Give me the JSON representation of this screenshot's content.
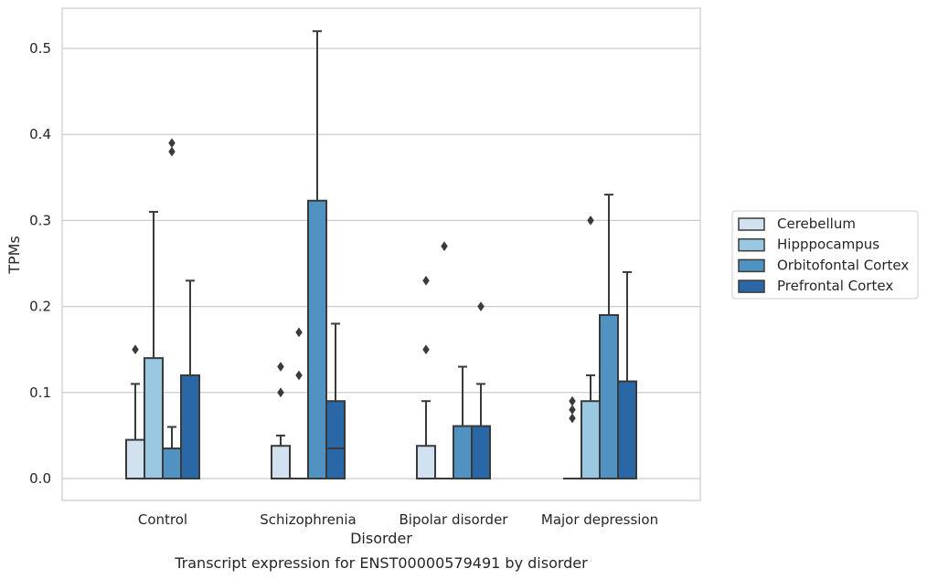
{
  "chart_data": {
    "type": "box",
    "title": "",
    "caption": "Transcript expression for ENST00000579491 by disorder",
    "xlabel": "Disorder",
    "ylabel": "TPMs",
    "ylim": [
      -0.025,
      0.545
    ],
    "yticks": [
      0.0,
      0.1,
      0.2,
      0.3,
      0.4,
      0.5
    ],
    "ytick_labels": [
      "0.0",
      "0.1",
      "0.2",
      "0.3",
      "0.4",
      "0.5"
    ],
    "grid": "horizontal",
    "legend_position": "right",
    "categories": [
      "Control",
      "Schizophrenia",
      "Bipolar disorder",
      "Major depression"
    ],
    "series": [
      {
        "name": "Cerebellum",
        "color": "#d2e1f0",
        "boxes": [
          {
            "q1": 0.0,
            "median": 0.0,
            "q3": 0.045,
            "whisker_low": 0.0,
            "whisker_high": 0.11,
            "outliers": [
              0.15
            ]
          },
          {
            "q1": 0.0,
            "median": 0.0,
            "q3": 0.038,
            "whisker_low": 0.0,
            "whisker_high": 0.05,
            "outliers": [
              0.1,
              0.13
            ]
          },
          {
            "q1": 0.0,
            "median": 0.0,
            "q3": 0.038,
            "whisker_low": 0.0,
            "whisker_high": 0.09,
            "outliers": [
              0.15,
              0.23
            ]
          },
          {
            "q1": 0.0,
            "median": 0.0,
            "q3": 0.0,
            "whisker_low": 0.0,
            "whisker_high": 0.0,
            "outliers": [
              0.07,
              0.08,
              0.09
            ]
          }
        ]
      },
      {
        "name": "Hipppocampus",
        "color": "#9ac8e0",
        "boxes": [
          {
            "q1": 0.0,
            "median": 0.0,
            "q3": 0.14,
            "whisker_low": 0.0,
            "whisker_high": 0.31,
            "outliers": []
          },
          {
            "q1": 0.0,
            "median": 0.0,
            "q3": 0.0,
            "whisker_low": 0.0,
            "whisker_high": 0.0,
            "outliers": [
              0.12,
              0.17
            ]
          },
          {
            "q1": 0.0,
            "median": 0.0,
            "q3": 0.0,
            "whisker_low": 0.0,
            "whisker_high": 0.0,
            "outliers": [
              0.27
            ]
          },
          {
            "q1": 0.0,
            "median": 0.0,
            "q3": 0.09,
            "whisker_low": 0.0,
            "whisker_high": 0.12,
            "outliers": [
              0.3
            ]
          }
        ]
      },
      {
        "name": "Orbitofontal Cortex",
        "color": "#5093c3",
        "boxes": [
          {
            "q1": 0.0,
            "median": 0.0,
            "q3": 0.035,
            "whisker_low": 0.0,
            "whisker_high": 0.06,
            "outliers": [
              0.38,
              0.39
            ]
          },
          {
            "q1": 0.0,
            "median": 0.0,
            "q3": 0.323,
            "whisker_low": 0.0,
            "whisker_high": 0.52,
            "outliers": []
          },
          {
            "q1": 0.0,
            "median": 0.0,
            "q3": 0.061,
            "whisker_low": 0.0,
            "whisker_high": 0.13,
            "outliers": []
          },
          {
            "q1": 0.0,
            "median": 0.0,
            "q3": 0.19,
            "whisker_low": 0.0,
            "whisker_high": 0.33,
            "outliers": []
          }
        ]
      },
      {
        "name": "Prefrontal Cortex",
        "color": "#2a67a6",
        "boxes": [
          {
            "q1": 0.0,
            "median": 0.0,
            "q3": 0.12,
            "whisker_low": 0.0,
            "whisker_high": 0.23,
            "outliers": []
          },
          {
            "q1": 0.0,
            "median": 0.035,
            "q3": 0.09,
            "whisker_low": 0.0,
            "whisker_high": 0.18,
            "outliers": []
          },
          {
            "q1": 0.0,
            "median": 0.0,
            "q3": 0.061,
            "whisker_low": 0.0,
            "whisker_high": 0.11,
            "outliers": [
              0.2
            ]
          },
          {
            "q1": 0.0,
            "median": 0.0,
            "q3": 0.113,
            "whisker_low": 0.0,
            "whisker_high": 0.24,
            "outliers": []
          }
        ]
      }
    ]
  }
}
